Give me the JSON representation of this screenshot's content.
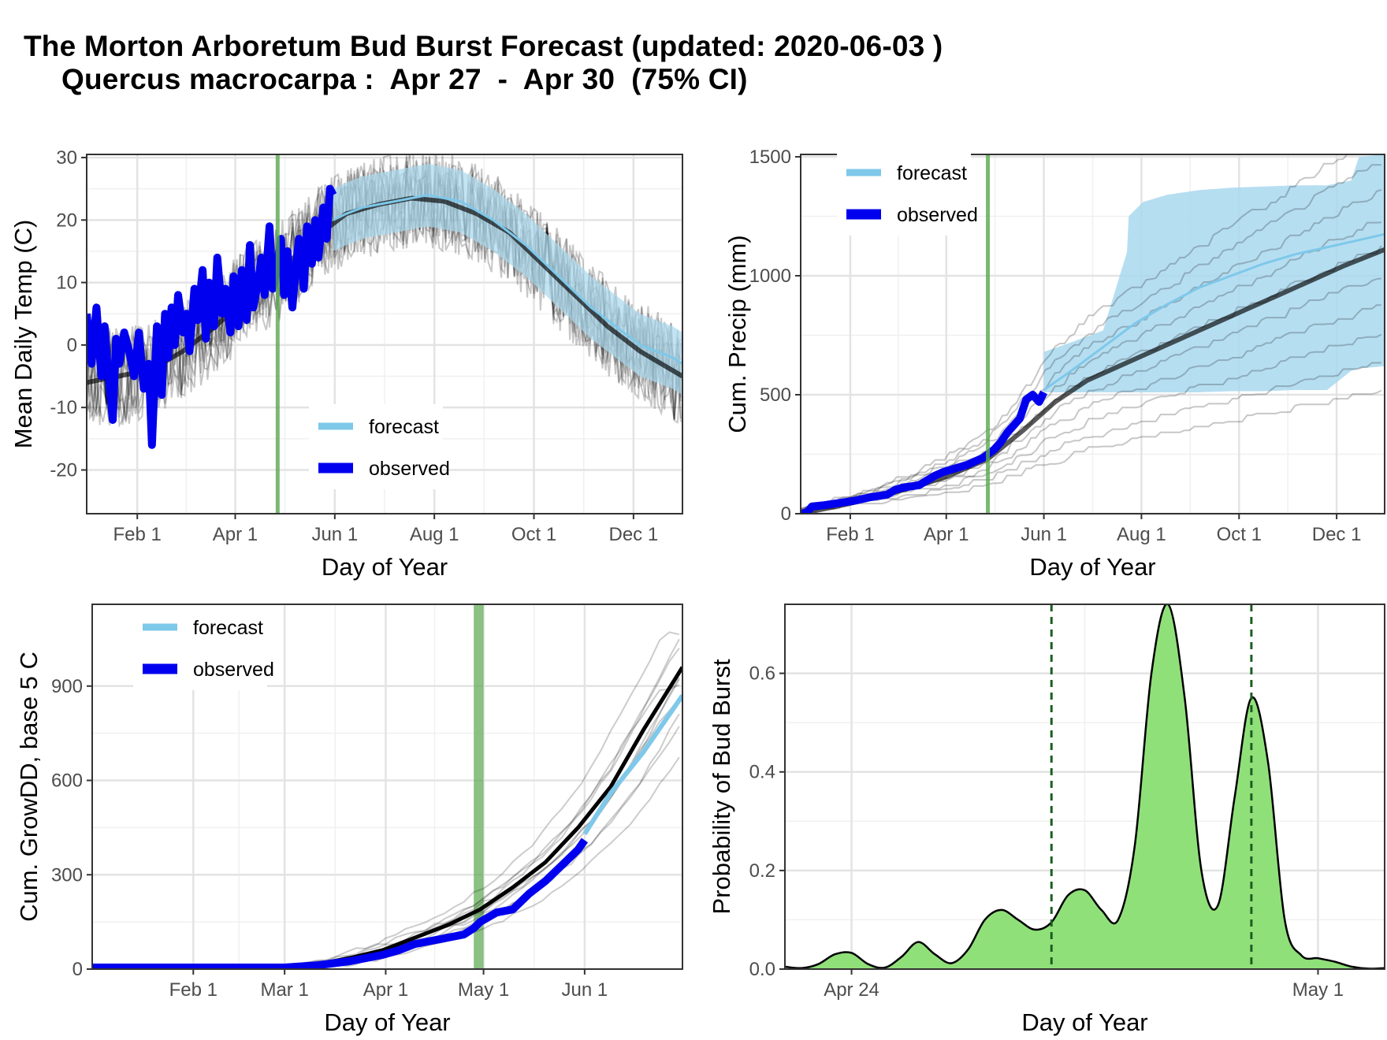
{
  "title": "The Morton Arboretum Bud Burst Forecast (updated: 2020-06-03 )",
  "subtitle": "Quercus macrocarpa :  Apr 27  -  Apr 30  (75% CI)",
  "colors": {
    "forecast": "#7ec8ea",
    "forecast_band": "#a9d8ee",
    "observed": "#0000ee",
    "ensemble": "#000000",
    "mean": "#000000",
    "bud_burst_window": "#5aa84f",
    "density_fill": "#90e07a",
    "ci_line": "#1b5e20",
    "grid": "#e3e3e3",
    "panel_border": "#333333"
  },
  "chart_data": [
    {
      "type": "line",
      "panel": "temperature",
      "xlabel": "Day of Year",
      "ylabel": "Mean Daily Temp (C)",
      "xlim": [
        1,
        366
      ],
      "ylim": [
        -27,
        30.5
      ],
      "x_ticks": [
        {
          "day": 32,
          "label": "Feb 1"
        },
        {
          "day": 92,
          "label": "Apr 1"
        },
        {
          "day": 153,
          "label": "Jun 1"
        },
        {
          "day": 214,
          "label": "Aug 1"
        },
        {
          "day": 275,
          "label": "Oct 1"
        },
        {
          "day": 336,
          "label": "Dec 1"
        }
      ],
      "y_ticks": [
        -20,
        -10,
        0,
        10,
        20,
        30
      ],
      "grid": true,
      "legend": {
        "position": "bottom-center",
        "entries": [
          "forecast",
          "observed"
        ]
      },
      "bud_burst_window_day": 118,
      "observed": {
        "name": "observed",
        "x": [
          1,
          4,
          7,
          10,
          12,
          14,
          17,
          19,
          21,
          24,
          27,
          30,
          33,
          36,
          39,
          41,
          44,
          47,
          49,
          51,
          53,
          55,
          57,
          60,
          62,
          64,
          67,
          69,
          72,
          74,
          76,
          79,
          81,
          84,
          86,
          89,
          91,
          94,
          96,
          99,
          101,
          103,
          106,
          108,
          110,
          113,
          115,
          118,
          120,
          122,
          124,
          127,
          129,
          131,
          134,
          136,
          139,
          141,
          143,
          146,
          148,
          150,
          152
        ],
        "y": [
          5,
          -3,
          6,
          -5,
          3,
          -4,
          -12,
          1,
          -3,
          2,
          -1,
          -5,
          2,
          -7,
          -3,
          -16,
          3,
          -8,
          5,
          -2,
          6,
          0,
          8,
          2,
          5,
          -1,
          9,
          4,
          12,
          1,
          10,
          3,
          14,
          5,
          9,
          2,
          11,
          3,
          12,
          4,
          16,
          6,
          10,
          14,
          8,
          19,
          9,
          13,
          17,
          8,
          15,
          6,
          12,
          17,
          9,
          19,
          13,
          20,
          14,
          22,
          17,
          25,
          24
        ]
      },
      "forecast_mean": {
        "name": "forecast",
        "x": [
          152,
          160,
          170,
          180,
          190,
          200,
          210,
          220,
          230,
          240,
          250,
          260,
          270,
          280,
          290,
          300,
          310,
          320,
          330,
          340,
          350,
          360,
          366
        ],
        "y": [
          20,
          21,
          22,
          22.5,
          23,
          23.5,
          24,
          23.5,
          23,
          21.5,
          20,
          18,
          16,
          13.5,
          11,
          8.5,
          6,
          4,
          2,
          0,
          -1,
          -2,
          -3
        ]
      },
      "forecast_band": {
        "lower_offset": -5,
        "upper_offset": 5
      },
      "climatology_mean": {
        "x": [
          1,
          20,
          40,
          60,
          80,
          100,
          120,
          140,
          160,
          180,
          200,
          220,
          240,
          260,
          280,
          300,
          320,
          340,
          366
        ],
        "y": [
          -6,
          -5,
          -4,
          -1,
          3,
          8,
          12,
          17,
          21,
          22.5,
          23.5,
          23,
          21,
          18,
          13,
          8,
          3,
          -1,
          -5
        ]
      }
    },
    {
      "type": "line",
      "panel": "precipitation",
      "xlabel": "Day of Year",
      "ylabel": "Cum. Precip (mm)",
      "xlim": [
        1,
        366
      ],
      "ylim": [
        0,
        1510
      ],
      "x_ticks": [
        {
          "day": 32,
          "label": "Feb 1"
        },
        {
          "day": 92,
          "label": "Apr 1"
        },
        {
          "day": 153,
          "label": "Jun 1"
        },
        {
          "day": 214,
          "label": "Aug 1"
        },
        {
          "day": 275,
          "label": "Oct 1"
        },
        {
          "day": 336,
          "label": "Dec 1"
        }
      ],
      "y_ticks": [
        0,
        500,
        1000,
        1500
      ],
      "grid": true,
      "legend": {
        "position": "top-left",
        "entries": [
          "forecast",
          "observed"
        ]
      },
      "bud_burst_window_day": 118,
      "observed": {
        "name": "observed",
        "x": [
          1,
          5,
          8,
          15,
          25,
          35,
          45,
          55,
          60,
          65,
          75,
          80,
          85,
          90,
          95,
          100,
          105,
          110,
          115,
          118,
          122,
          126,
          130,
          134,
          138,
          142,
          146,
          150,
          153
        ],
        "y": [
          0,
          5,
          30,
          35,
          45,
          55,
          70,
          80,
          100,
          110,
          120,
          140,
          160,
          175,
          185,
          195,
          205,
          220,
          235,
          250,
          270,
          300,
          340,
          370,
          400,
          480,
          500,
          470,
          510
        ]
      },
      "forecast_mean": {
        "name": "forecast",
        "x": [
          153,
          170,
          190,
          210,
          230,
          250,
          270,
          290,
          310,
          330,
          350,
          366
        ],
        "y": [
          520,
          600,
          700,
          800,
          880,
          950,
          1000,
          1050,
          1090,
          1120,
          1150,
          1175
        ]
      },
      "forecast_band": {
        "x": [
          153,
          170,
          190,
          205,
          206,
          215,
          230,
          250,
          270,
          290,
          310,
          330,
          345,
          350,
          366
        ],
        "lower": [
          510,
          510,
          510,
          510,
          510,
          510,
          510,
          510,
          515,
          515,
          520,
          520,
          600,
          610,
          620
        ],
        "upper": [
          680,
          720,
          770,
          1100,
          1250,
          1310,
          1340,
          1360,
          1370,
          1375,
          1380,
          1380,
          1400,
          1500,
          1510
        ]
      },
      "climatology_mean": {
        "x": [
          1,
          30,
          60,
          90,
          118,
          140,
          160,
          180,
          200,
          220,
          240,
          260,
          280,
          300,
          320,
          340,
          366
        ],
        "y": [
          0,
          40,
          90,
          150,
          230,
          350,
          470,
          560,
          620,
          680,
          740,
          800,
          860,
          920,
          980,
          1040,
          1110
        ]
      }
    },
    {
      "type": "line",
      "panel": "growing_degree_days",
      "xlabel": "Day of Year",
      "ylabel": "Cum. GrowDD, base 5 C",
      "xlim": [
        1,
        182
      ],
      "ylim": [
        0,
        1160
      ],
      "x_ticks": [
        {
          "day": 32,
          "label": "Feb 1"
        },
        {
          "day": 60,
          "label": "Mar 1"
        },
        {
          "day": 91,
          "label": "Apr 1"
        },
        {
          "day": 121,
          "label": "May 1"
        },
        {
          "day": 152,
          "label": "Jun 1"
        }
      ],
      "y_ticks": [
        0,
        300,
        600,
        900
      ],
      "grid": true,
      "legend": {
        "position": "top-left",
        "entries": [
          "forecast",
          "observed"
        ]
      },
      "bud_burst_window": [
        118,
        121
      ],
      "observed": {
        "name": "observed",
        "x": [
          1,
          20,
          40,
          60,
          70,
          80,
          90,
          95,
          100,
          105,
          110,
          115,
          118,
          120,
          125,
          130,
          135,
          140,
          145,
          150,
          152
        ],
        "y": [
          5,
          5,
          5,
          5,
          12,
          25,
          45,
          60,
          80,
          90,
          100,
          110,
          130,
          150,
          180,
          190,
          240,
          280,
          330,
          380,
          410
        ]
      },
      "forecast_mean": {
        "name": "forecast",
        "x": [
          152,
          160,
          170,
          182
        ],
        "y": [
          430,
          560,
          690,
          870
        ]
      },
      "climatology_mean": {
        "x": [
          1,
          30,
          60,
          70,
          80,
          90,
          100,
          110,
          120,
          130,
          140,
          150,
          160,
          170,
          182
        ],
        "y": [
          0,
          2,
          5,
          15,
          35,
          60,
          100,
          140,
          190,
          260,
          340,
          450,
          580,
          760,
          960
        ]
      }
    },
    {
      "type": "area",
      "panel": "bud_burst_probability",
      "xlabel": "Day of Year",
      "ylabel": "Probability of Bud Burst",
      "xlim": [
        113.0,
        122.0
      ],
      "ylim": [
        0,
        0.74
      ],
      "x_ticks": [
        {
          "day": 114,
          "label": "Apr 24"
        },
        {
          "day": 121,
          "label": "May 1"
        }
      ],
      "y_ticks": [
        0.0,
        0.2,
        0.4,
        0.6
      ],
      "y_tick_labels": [
        "0.0",
        "0.2",
        "0.4",
        "0.6"
      ],
      "grid": true,
      "ci_lines": [
        117,
        120
      ],
      "x": [
        113.0,
        113.25,
        113.5,
        113.75,
        114.0,
        114.25,
        114.5,
        114.75,
        115.0,
        115.25,
        115.5,
        115.75,
        116.0,
        116.25,
        116.5,
        116.75,
        117.0,
        117.25,
        117.5,
        117.75,
        118.0,
        118.25,
        118.5,
        118.75,
        119.0,
        119.25,
        119.5,
        119.75,
        120.0,
        120.25,
        120.5,
        120.75,
        121.0,
        121.25,
        121.5,
        121.75,
        122.0
      ],
      "values": [
        0.005,
        0.002,
        0.01,
        0.03,
        0.033,
        0.01,
        0.003,
        0.025,
        0.055,
        0.03,
        0.012,
        0.04,
        0.1,
        0.12,
        0.1,
        0.08,
        0.095,
        0.15,
        0.16,
        0.12,
        0.1,
        0.25,
        0.6,
        0.74,
        0.55,
        0.2,
        0.13,
        0.35,
        0.55,
        0.42,
        0.1,
        0.028,
        0.022,
        0.015,
        0.005,
        0.001,
        0.002
      ]
    }
  ]
}
